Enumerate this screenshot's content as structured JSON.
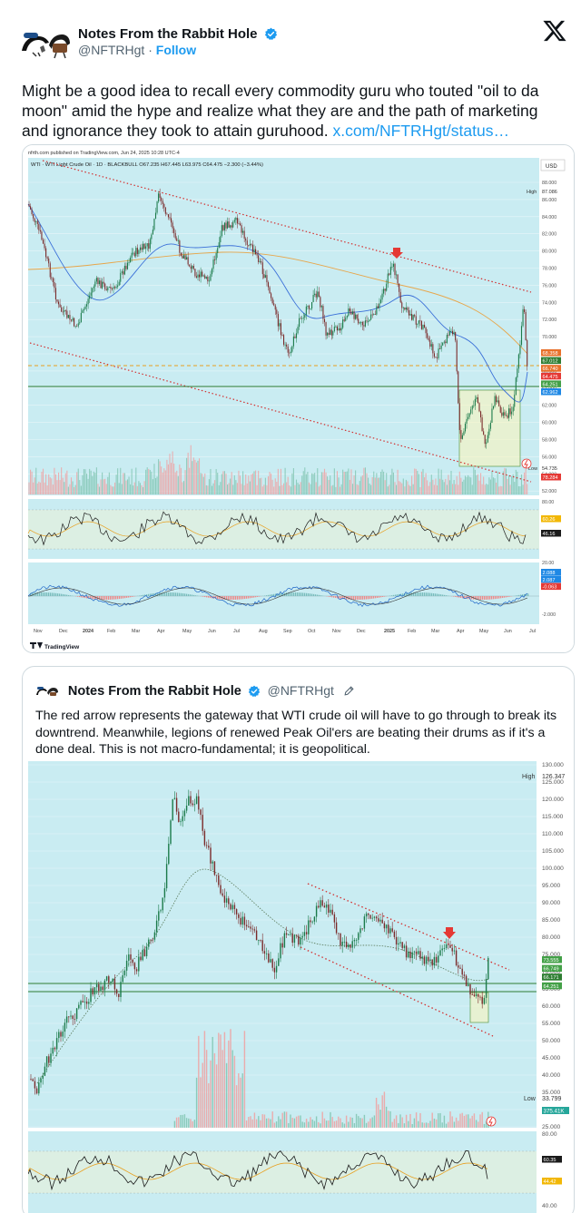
{
  "post": {
    "author_name": "Notes From the Rabbit Hole",
    "handle": "@NFTRHgt",
    "separator": "·",
    "follow_label": "Follow",
    "text": "Might be a good idea to recall every commodity guru who touted \"oil to da moon\" amid the hype and realize what they are and the path of marketing and ignorance they took to attain guruhood.",
    "link_text": "x.com/NFTRHgt/status…"
  },
  "chart1": {
    "published": "nfrth.com published on TradingView.com, Jun 24, 2025 10:28 UTC-4",
    "symbol_line": "WTI · WTI Light Crude Oil · 1D · BLACKBULL  O67.235  H67.445  L63.975  C64.475  −2.300 (−3.44%)",
    "currency": "USD",
    "high_label": "High",
    "high_value": "87.086",
    "low_label": "Low",
    "low_value": "54.735",
    "price_ticks": [
      "88.000",
      "86.000",
      "84.000",
      "82.000",
      "80.000",
      "78.000",
      "76.000",
      "74.000",
      "72.000",
      "70.000",
      "68.000",
      "66.000",
      "64.000",
      "62.000",
      "60.000",
      "58.000",
      "56.000",
      "54.000",
      "52.000"
    ],
    "price_badges": [
      {
        "text": "68.358",
        "color": "#e8702a"
      },
      {
        "text": "67.012",
        "color": "#2e7d32"
      },
      {
        "text": "66.740",
        "color": "#e8702a"
      },
      {
        "text": "64.475",
        "color": "#e53935"
      },
      {
        "text": "64.251",
        "color": "#43a047"
      },
      {
        "text": "62.962",
        "color": "#1e88e5"
      }
    ],
    "volume_badge": {
      "text": "78.284",
      "color": "#e53935"
    },
    "rsi_ticks": [
      "80.00",
      "20.00"
    ],
    "rsi_badges": [
      {
        "text": "60.26",
        "color": "#f2b705"
      },
      {
        "text": "46.16",
        "color": "#1a1a1a"
      }
    ],
    "macd_ticks": [
      "-2.000"
    ],
    "macd_badges": [
      {
        "text": "2.088",
        "color": "#1e88e5"
      },
      {
        "text": "2.087",
        "color": "#1e88e5"
      },
      {
        "text": "-0.063",
        "color": "#e53935"
      }
    ],
    "x_ticks": [
      "Nov",
      "Dec",
      "2024",
      "Feb",
      "Mar",
      "Apr",
      "May",
      "Jun",
      "Jul",
      "Aug",
      "Sep",
      "Oct",
      "Nov",
      "Dec",
      "2025",
      "Feb",
      "Mar",
      "Apr",
      "May",
      "Jun",
      "Jul"
    ],
    "brand": "TradingView"
  },
  "quote": {
    "author_name": "Notes From the Rabbit Hole",
    "handle": "@NFTRHgt",
    "text": "The red arrow represents the gateway that WTI crude oil will have to go through to break its downtrend. Meanwhile, legions of renewed Peak Oil'ers are beating their drums as if it's a done deal. This is not  macro-fundamental; it is geopolitical."
  },
  "chart2": {
    "high_label": "High",
    "high_value": "126.347",
    "low_label": "Low",
    "low_value": "33.799",
    "price_ticks": [
      "130.000",
      "125.000",
      "120.000",
      "115.000",
      "110.000",
      "105.000",
      "100.000",
      "95.000",
      "90.000",
      "85.000",
      "80.000",
      "75.000",
      "70.000",
      "65.000",
      "60.000",
      "55.000",
      "50.000",
      "45.000",
      "40.000",
      "35.000",
      "30.000",
      "25.000"
    ],
    "price_badges": [
      {
        "text": "73.555",
        "color": "#43a047"
      },
      {
        "text": "66.749",
        "color": "#43a047"
      },
      {
        "text": "66.171",
        "color": "#2e7d32"
      },
      {
        "text": "64.251",
        "color": "#43a047"
      }
    ],
    "volume_badge": {
      "text": "375.41K",
      "color": "#26a69a"
    },
    "rsi_ticks": [
      "80.00",
      "40.00"
    ],
    "rsi_badges": [
      {
        "text": "60.35",
        "color": "#1a1a1a"
      },
      {
        "text": "44.42",
        "color": "#f2b705"
      }
    ]
  }
}
